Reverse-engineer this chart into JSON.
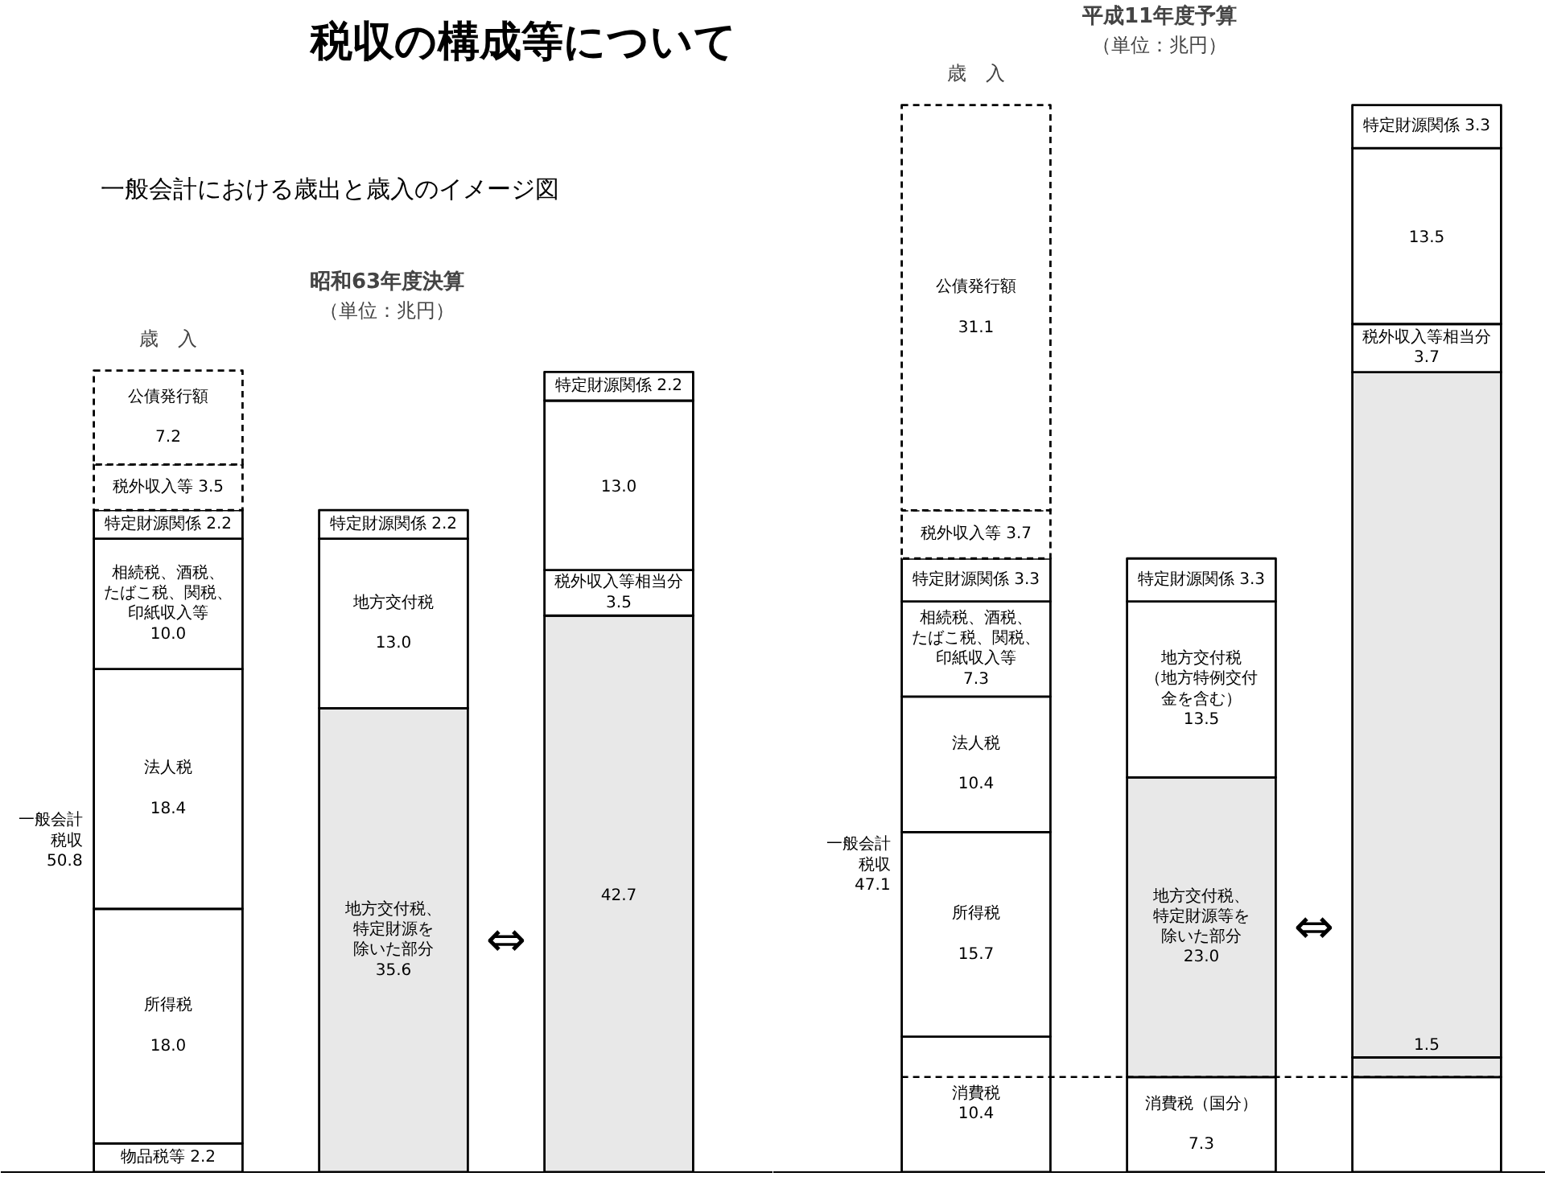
{
  "chart_data": [
    {
      "type": "other",
      "title": "税収の構成等について",
      "subtitle": "一般会計における歳出と歳入のイメージ図"
    },
    {
      "type": "bar",
      "stacked": true,
      "title": "昭和63年度決算",
      "subtitle": "（単位：兆円）",
      "categories": [
        "歳　入",
        null,
        null
      ],
      "tick_labels": "x",
      "series": [
        {
          "color": "#ffffff",
          "values": [
            2.2,
            null,
            null
          ],
          "value_labels": [
            "物品税等 2.2",
            null,
            null
          ]
        },
        {
          "color": "#ffffff",
          "values": [
            18.0,
            null,
            null
          ],
          "value_labels": [
            "所得税\n\n18.0",
            null,
            null
          ]
        },
        {
          "color": "#ffffff",
          "values": [
            18.4,
            null,
            null
          ],
          "value_labels": [
            "法人税\n\n18.4",
            null,
            null
          ]
        },
        {
          "color": "#ffffff",
          "values": [
            10.0,
            null,
            null
          ],
          "value_labels": [
            "相続税、酒税、たばこ税、関税、印紙収入等\n10.0",
            null,
            null
          ]
        },
        {
          "color": "#e8e8e8",
          "values": [
            null,
            35.6,
            42.7
          ],
          "value_labels": [
            null,
            "地方交付税、特定財源を除いた部分\n35.6",
            "42.7"
          ]
        },
        {
          "color": "#ffffff",
          "values": [
            null,
            null,
            3.5
          ],
          "value_labels": [
            null,
            null,
            "税外収入等相当分 3.5"
          ]
        },
        {
          "color": "#ffffff",
          "values": [
            null,
            13.0,
            13.0
          ],
          "value_labels": [
            null,
            "地方交付税\n\n13.0",
            "13.0"
          ]
        },
        {
          "color": "#ffffff",
          "values": [
            2.2,
            2.2,
            2.2
          ],
          "value_labels": [
            "特定財源関係 2.2",
            "特定財源関係 2.2",
            "特定財源関係 2.2"
          ]
        },
        {
          "color": "#ffffff",
          "values": [
            3.5,
            null,
            null
          ],
          "value_labels": [
            "税外収入等 3.5",
            null,
            null
          ],
          "line_style": "dashed"
        },
        {
          "color": "#ffffff",
          "values": [
            7.2,
            null,
            null
          ],
          "value_labels": [
            "公債発行額\n\n7.2",
            null,
            null
          ],
          "line_style": "dashed"
        }
      ],
      "annotations": [
        "一般会計税収\n50.8",
        "⇔"
      ]
    },
    {
      "type": "bar",
      "stacked": true,
      "title": "平成11年度予算",
      "subtitle": "（単位：兆円）",
      "categories": [
        "歳　入",
        null,
        null
      ],
      "tick_labels": "x",
      "series": [
        {
          "color": "#ffffff",
          "values": [
            10.4,
            null,
            null
          ],
          "value_labels": [
            "消費税\n10.4",
            null,
            null
          ]
        },
        {
          "color": "#ffffff",
          "values": [
            null,
            7.3,
            7.3
          ],
          "value_labels": [
            null,
            "消費税（国分）\n\n7.3",
            null
          ]
        },
        {
          "color": "#ffffff",
          "values": [
            15.7,
            null,
            null
          ],
          "value_labels": [
            "所得税\n\n15.7",
            null,
            null
          ]
        },
        {
          "color": "#ffffff",
          "values": [
            10.4,
            null,
            null
          ],
          "value_labels": [
            "法人税\n\n10.4",
            null,
            null
          ]
        },
        {
          "color": "#ffffff",
          "values": [
            7.3,
            null,
            null
          ],
          "value_labels": [
            "相続税、酒税、たばこ税、関税、印紙収入等\n7.3",
            null,
            null
          ]
        },
        {
          "color": "#e8e8e8",
          "values": [
            null,
            null,
            1.5
          ],
          "value_labels": [
            null,
            null,
            "1.5"
          ]
        },
        {
          "color": "#e8e8e8",
          "values": [
            null,
            23.0,
            52.6
          ],
          "value_labels": [
            null,
            "地方交付税、特定財源等を除いた部分\n23.0",
            null
          ]
        },
        {
          "color": "#ffffff",
          "values": [
            null,
            null,
            3.7
          ],
          "value_labels": [
            null,
            null,
            "税外収入等相当分 3.7"
          ]
        },
        {
          "color": "#ffffff",
          "values": [
            null,
            13.5,
            13.5
          ],
          "value_labels": [
            null,
            "地方交付税（地方特例交付金を含む）\n13.5",
            "13.5"
          ]
        },
        {
          "color": "#ffffff",
          "values": [
            3.3,
            3.3,
            3.3
          ],
          "value_labels": [
            "特定財源関係 3.3",
            "特定財源関係 3.3",
            "特定財源関係 3.3"
          ]
        },
        {
          "color": "#ffffff",
          "values": [
            3.7,
            null,
            null
          ],
          "value_labels": [
            "税外収入等 3.7",
            null,
            null
          ],
          "line_style": "dashed"
        },
        {
          "color": "#ffffff",
          "values": [
            31.1,
            null,
            null
          ],
          "value_labels": [
            "公債発行額\n\n31.1",
            null,
            null
          ],
          "line_style": "dashed"
        }
      ],
      "ref_lines": [
        {
          "axis": "y",
          "value": 7.3,
          "line_style": "dashed"
        }
      ],
      "annotations": [
        "一般会計税収\n47.1",
        "⇔"
      ]
    }
  ]
}
